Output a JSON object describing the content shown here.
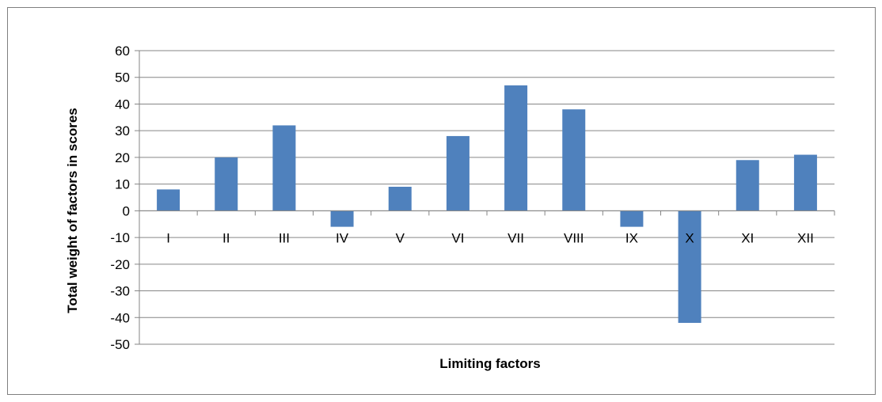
{
  "chart_data": {
    "type": "bar",
    "title": "",
    "xlabel": "Limiting factors",
    "ylabel": "Total weight of factors in scores",
    "categories": [
      "I",
      "II",
      "III",
      "IV",
      "V",
      "VI",
      "VII",
      "VIII",
      "IX",
      "X",
      "XI",
      "XII"
    ],
    "values": [
      8,
      20,
      32,
      -6,
      9,
      28,
      47,
      38,
      -6,
      -42,
      19,
      21
    ],
    "ylim": [
      -50,
      60
    ],
    "yticks": [
      60,
      50,
      40,
      30,
      20,
      10,
      0,
      -10,
      -20,
      -30,
      -40,
      -50
    ],
    "grid": true,
    "legend": "none",
    "bar_color": "#4f81bd",
    "grid_color": "#868686"
  }
}
